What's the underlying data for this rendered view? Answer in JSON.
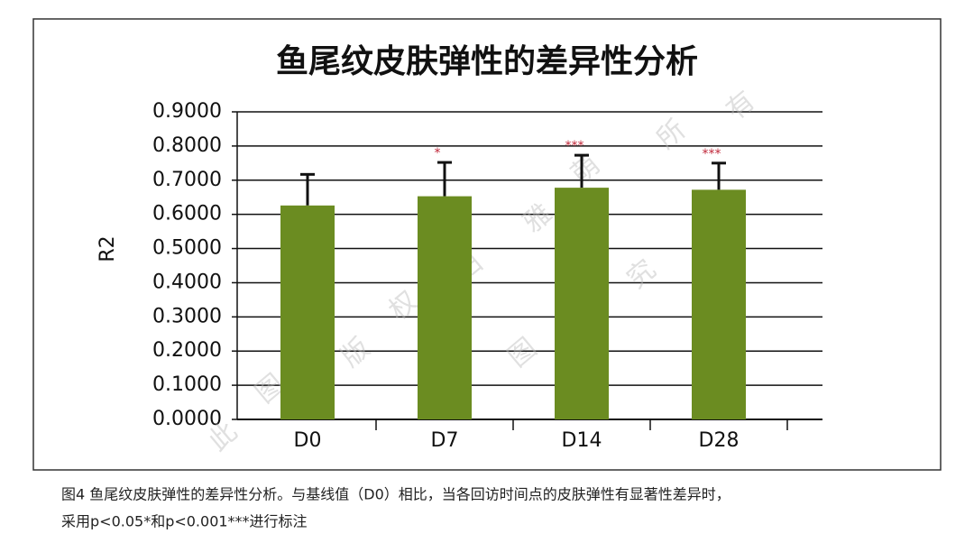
{
  "chart_data": {
    "type": "bar",
    "title": "鱼尾纹皮肤弹性的差异性分析",
    "y_label": "R2",
    "categories": [
      "D0",
      "D7",
      "D14",
      "D28"
    ],
    "values": [
      0.626,
      0.653,
      0.678,
      0.672
    ],
    "errors": [
      0.091,
      0.099,
      0.095,
      0.078
    ],
    "significance": [
      null,
      "*",
      "***",
      "***"
    ],
    "color": "#6b8c21",
    "ylim": [
      0,
      0.9
    ],
    "yticks": [
      {
        "value": 0,
        "label": "0.0000"
      },
      {
        "value": 0.1,
        "label": "0.1000"
      },
      {
        "value": 0.2,
        "label": "0.2000"
      },
      {
        "value": 0.3,
        "label": "0.3000"
      },
      {
        "value": 0.4,
        "label": "0.4000"
      },
      {
        "value": 0.5,
        "label": "0.5000"
      },
      {
        "value": 0.6,
        "label": "0.6000"
      },
      {
        "value": 0.7,
        "label": "0.7000"
      },
      {
        "value": 0.8,
        "label": "0.8000"
      },
      {
        "value": 0.9,
        "label": "0.9000"
      }
    ],
    "grid": true
  },
  "watermark": [
    "此",
    "图",
    "版",
    "权",
    "归",
    "雅",
    "萌",
    "所",
    "有",
    "盗",
    "图",
    "必",
    "究"
  ],
  "caption": [
    "图4 鱼尾纹皮肤弹性的差异性分析。与基线值（D0）相比，当各回访时间点的皮肤弹性有显著性差异时，",
    "采用p<0.05*和p<0.001***进行标注"
  ]
}
